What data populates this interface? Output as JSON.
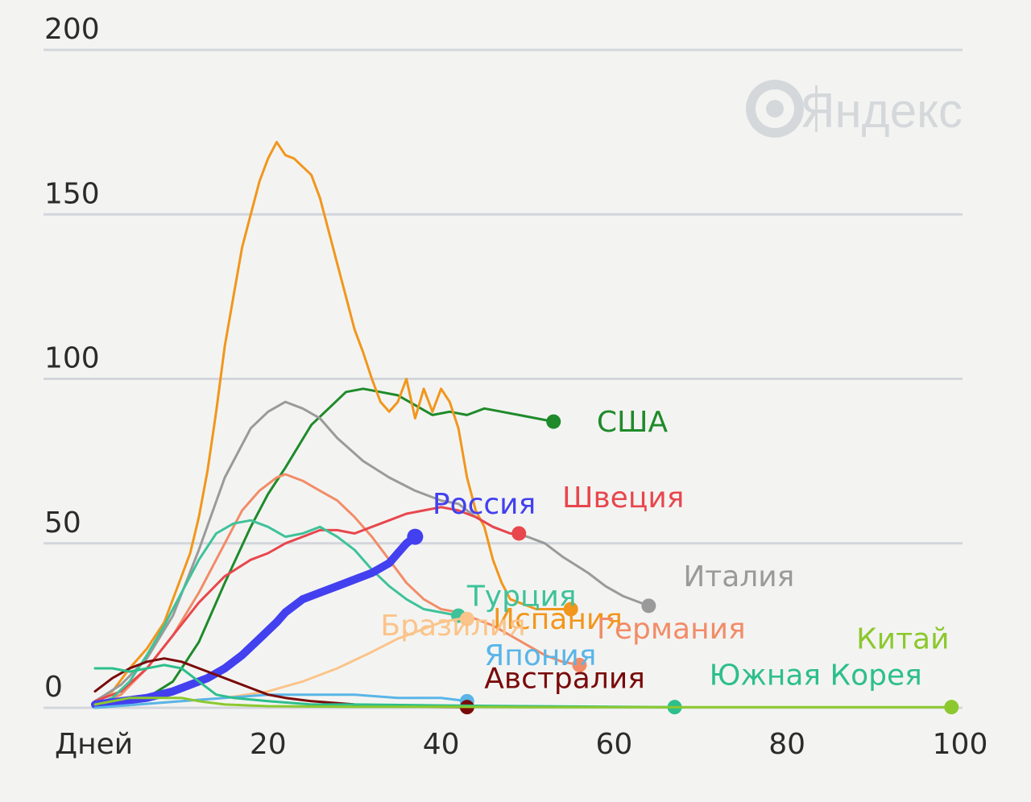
{
  "chart_data": {
    "type": "line",
    "xlabel": "Дней",
    "x_ticks": [
      20,
      40,
      60,
      80,
      100
    ],
    "y_ticks": [
      0,
      50,
      100,
      150,
      200
    ],
    "xlim": [
      0,
      100
    ],
    "ylim": [
      0,
      200
    ],
    "grid": true,
    "watermark": {
      "brand_text": "Яндекс",
      "icon": "yandex-logo-icon",
      "color": "#d5d8db"
    },
    "series": [
      {
        "name": "США",
        "color": "#1f8a2a",
        "label_x": 58,
        "label_y": 84,
        "points": [
          [
            2,
            1
          ],
          [
            6,
            3
          ],
          [
            9,
            8
          ],
          [
            12,
            20
          ],
          [
            15,
            38
          ],
          [
            18,
            55
          ],
          [
            20,
            65
          ],
          [
            22,
            73
          ],
          [
            25,
            86
          ],
          [
            27,
            91
          ],
          [
            29,
            96
          ],
          [
            31,
            97
          ],
          [
            33,
            96
          ],
          [
            35,
            95
          ],
          [
            37,
            92
          ],
          [
            39,
            89
          ],
          [
            41,
            90
          ],
          [
            43,
            89
          ],
          [
            45,
            91
          ],
          [
            47,
            90
          ],
          [
            49,
            89
          ],
          [
            51,
            88
          ],
          [
            53,
            87
          ]
        ]
      },
      {
        "name": "Испания",
        "color": "#f2961c",
        "label_x": 46,
        "label_y": 24,
        "points": [
          [
            0,
            2
          ],
          [
            2,
            5
          ],
          [
            4,
            12
          ],
          [
            6,
            18
          ],
          [
            8,
            26
          ],
          [
            10,
            40
          ],
          [
            11,
            47
          ],
          [
            12,
            58
          ],
          [
            13,
            72
          ],
          [
            14,
            90
          ],
          [
            15,
            110
          ],
          [
            16,
            125
          ],
          [
            17,
            140
          ],
          [
            18,
            150
          ],
          [
            19,
            160
          ],
          [
            20,
            167
          ],
          [
            21,
            172
          ],
          [
            22,
            168
          ],
          [
            23,
            167
          ],
          [
            25,
            162
          ],
          [
            26,
            155
          ],
          [
            27,
            145
          ],
          [
            28,
            135
          ],
          [
            29,
            125
          ],
          [
            30,
            115
          ],
          [
            31,
            108
          ],
          [
            32,
            100
          ],
          [
            33,
            93
          ],
          [
            34,
            90
          ],
          [
            35,
            93
          ],
          [
            36,
            100
          ],
          [
            37,
            88
          ],
          [
            38,
            97
          ],
          [
            39,
            90
          ],
          [
            40,
            97
          ],
          [
            41,
            93
          ],
          [
            42,
            85
          ],
          [
            43,
            70
          ],
          [
            44,
            60
          ],
          [
            45,
            55
          ],
          [
            46,
            45
          ],
          [
            47,
            38
          ],
          [
            48,
            33
          ],
          [
            49,
            32
          ],
          [
            50,
            31
          ],
          [
            51,
            30
          ],
          [
            53,
            30
          ],
          [
            55,
            30
          ]
        ]
      },
      {
        "name": "Италия",
        "color": "#9a9a9a",
        "label_x": 68,
        "label_y": 37,
        "points": [
          [
            0,
            2
          ],
          [
            3,
            7
          ],
          [
            6,
            15
          ],
          [
            9,
            28
          ],
          [
            12,
            48
          ],
          [
            15,
            70
          ],
          [
            18,
            85
          ],
          [
            20,
            90
          ],
          [
            22,
            93
          ],
          [
            24,
            91
          ],
          [
            26,
            88
          ],
          [
            28,
            82
          ],
          [
            31,
            75
          ],
          [
            34,
            70
          ],
          [
            37,
            66
          ],
          [
            40,
            63
          ],
          [
            42,
            62
          ],
          [
            44,
            58
          ],
          [
            46,
            55
          ],
          [
            48,
            53
          ],
          [
            50,
            52
          ],
          [
            52,
            50
          ],
          [
            54,
            46
          ],
          [
            57,
            41
          ],
          [
            59,
            37
          ],
          [
            61,
            34
          ],
          [
            64,
            31
          ]
        ]
      },
      {
        "name": "Германия",
        "color": "#f28c68",
        "label_x": 58,
        "label_y": 21,
        "points": [
          [
            0,
            1
          ],
          [
            3,
            4
          ],
          [
            6,
            12
          ],
          [
            9,
            22
          ],
          [
            12,
            35
          ],
          [
            15,
            50
          ],
          [
            17,
            60
          ],
          [
            19,
            66
          ],
          [
            21,
            70
          ],
          [
            22,
            71
          ],
          [
            24,
            69
          ],
          [
            26,
            66
          ],
          [
            28,
            63
          ],
          [
            30,
            58
          ],
          [
            32,
            52
          ],
          [
            34,
            45
          ],
          [
            36,
            38
          ],
          [
            38,
            33
          ],
          [
            40,
            30
          ],
          [
            42,
            29
          ],
          [
            44,
            27
          ],
          [
            46,
            25
          ],
          [
            48,
            22
          ],
          [
            50,
            19
          ],
          [
            52,
            16
          ],
          [
            54,
            14
          ],
          [
            56,
            13
          ]
        ]
      },
      {
        "name": "Швеция",
        "color": "#e8474d",
        "label_x": 54,
        "label_y": 61,
        "points": [
          [
            0,
            2
          ],
          [
            3,
            5
          ],
          [
            6,
            12
          ],
          [
            9,
            22
          ],
          [
            12,
            32
          ],
          [
            15,
            40
          ],
          [
            18,
            45
          ],
          [
            20,
            47
          ],
          [
            22,
            50
          ],
          [
            24,
            52
          ],
          [
            26,
            54
          ],
          [
            28,
            54
          ],
          [
            30,
            53
          ],
          [
            32,
            55
          ],
          [
            34,
            57
          ],
          [
            36,
            59
          ],
          [
            38,
            60
          ],
          [
            40,
            61
          ],
          [
            42,
            60
          ],
          [
            44,
            58
          ],
          [
            46,
            55
          ],
          [
            48,
            53
          ],
          [
            49,
            53
          ]
        ]
      },
      {
        "name": "Турция",
        "color": "#3fc29a",
        "label_x": 43,
        "label_y": 31,
        "points": [
          [
            0,
            1
          ],
          [
            2,
            3
          ],
          [
            4,
            8
          ],
          [
            6,
            16
          ],
          [
            8,
            25
          ],
          [
            10,
            35
          ],
          [
            12,
            45
          ],
          [
            14,
            53
          ],
          [
            16,
            56
          ],
          [
            18,
            57
          ],
          [
            20,
            55
          ],
          [
            22,
            52
          ],
          [
            24,
            53
          ],
          [
            26,
            55
          ],
          [
            28,
            52
          ],
          [
            30,
            48
          ],
          [
            32,
            42
          ],
          [
            34,
            37
          ],
          [
            36,
            33
          ],
          [
            38,
            30
          ],
          [
            40,
            29
          ],
          [
            42,
            28
          ]
        ]
      },
      {
        "name": "Бразилия",
        "color": "#fbc48a",
        "label_x": 33,
        "label_y": 22,
        "points": [
          [
            0,
            0
          ],
          [
            5,
            1
          ],
          [
            10,
            2
          ],
          [
            15,
            3
          ],
          [
            20,
            5
          ],
          [
            24,
            8
          ],
          [
            28,
            12
          ],
          [
            32,
            17
          ],
          [
            35,
            21
          ],
          [
            38,
            24
          ],
          [
            40,
            26
          ],
          [
            42,
            27
          ],
          [
            43,
            27
          ]
        ]
      },
      {
        "name": "Россия",
        "color": "#4340ef",
        "label_x": 39,
        "label_y": 59,
        "points": [
          [
            0,
            1
          ],
          [
            3,
            2
          ],
          [
            6,
            3
          ],
          [
            9,
            5
          ],
          [
            11,
            7
          ],
          [
            13,
            9
          ],
          [
            15,
            12
          ],
          [
            17,
            16
          ],
          [
            19,
            21
          ],
          [
            21,
            26
          ],
          [
            22,
            29
          ],
          [
            24,
            33
          ],
          [
            26,
            35
          ],
          [
            28,
            37
          ],
          [
            30,
            39
          ],
          [
            32,
            41
          ],
          [
            34,
            44
          ],
          [
            35,
            47
          ],
          [
            36,
            50
          ],
          [
            37,
            52
          ]
        ]
      },
      {
        "name": "Япония",
        "color": "#5ab5e8",
        "label_x": 45,
        "label_y": 13,
        "points": [
          [
            0,
            0
          ],
          [
            5,
            1
          ],
          [
            10,
            2
          ],
          [
            15,
            3
          ],
          [
            20,
            4
          ],
          [
            25,
            4
          ],
          [
            30,
            4
          ],
          [
            35,
            3
          ],
          [
            40,
            3
          ],
          [
            43,
            2
          ]
        ]
      },
      {
        "name": "Австралия",
        "color": "#7a0a0a",
        "label_x": 45,
        "label_y": 6,
        "points": [
          [
            0,
            5
          ],
          [
            2,
            9
          ],
          [
            4,
            12
          ],
          [
            6,
            14
          ],
          [
            8,
            15
          ],
          [
            10,
            14
          ],
          [
            12,
            12
          ],
          [
            14,
            10
          ],
          [
            16,
            8
          ],
          [
            18,
            6
          ],
          [
            20,
            4
          ],
          [
            22,
            3
          ],
          [
            25,
            2
          ],
          [
            30,
            1
          ],
          [
            35,
            0.5
          ],
          [
            40,
            0.3
          ],
          [
            43,
            0.2
          ]
        ]
      },
      {
        "name": "Южная Корея",
        "color": "#2dbf8c",
        "label_x": 71,
        "label_y": 7,
        "points": [
          [
            0,
            12
          ],
          [
            2,
            12
          ],
          [
            4,
            11
          ],
          [
            6,
            12
          ],
          [
            8,
            13
          ],
          [
            10,
            12
          ],
          [
            12,
            8
          ],
          [
            14,
            4
          ],
          [
            16,
            3
          ],
          [
            20,
            2
          ],
          [
            25,
            1
          ],
          [
            30,
            1
          ],
          [
            40,
            0.7
          ],
          [
            50,
            0.5
          ],
          [
            60,
            0.3
          ],
          [
            67,
            0.2
          ]
        ]
      },
      {
        "name": "Китай",
        "color": "#8cc82e",
        "label_x": 88,
        "label_y": 18,
        "points": [
          [
            0,
            1
          ],
          [
            2,
            2
          ],
          [
            4,
            3
          ],
          [
            6,
            3
          ],
          [
            8,
            3
          ],
          [
            10,
            3
          ],
          [
            12,
            2
          ],
          [
            15,
            1
          ],
          [
            20,
            0.5
          ],
          [
            30,
            0.3
          ],
          [
            40,
            0.3
          ],
          [
            50,
            0.2
          ],
          [
            60,
            0.2
          ],
          [
            70,
            0.2
          ],
          [
            80,
            0.2
          ],
          [
            90,
            0.2
          ],
          [
            99,
            0.2
          ]
        ]
      }
    ]
  }
}
